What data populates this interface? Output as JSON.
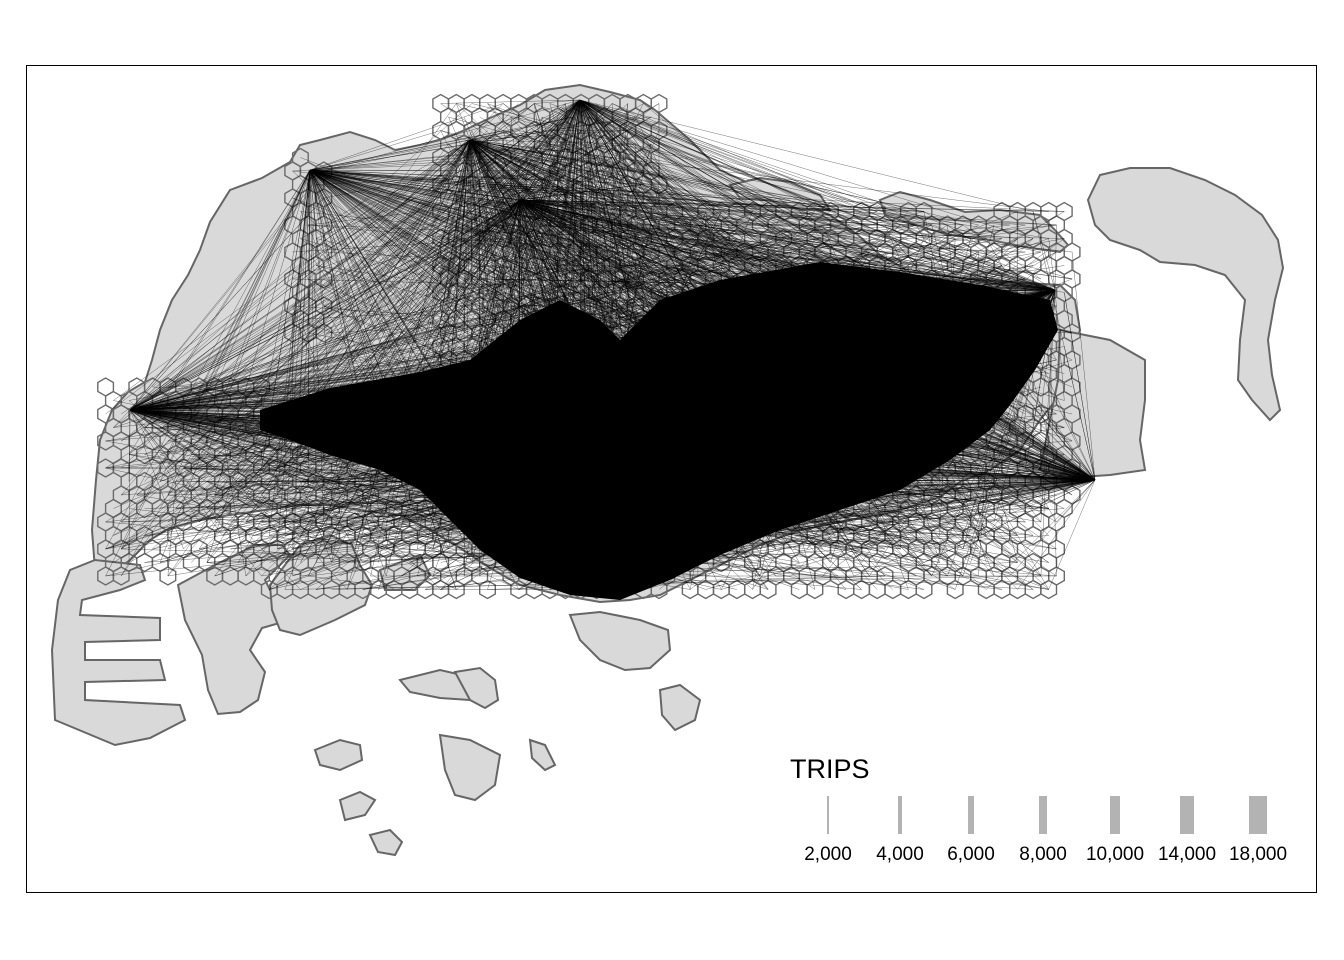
{
  "map": {
    "fill_color": "#d9d9d9",
    "border_color": "#666666",
    "flow_color": "#000000"
  },
  "legend": {
    "title": "TRIPS",
    "bar_color": "#b3b3b3",
    "items": [
      {
        "label": "2,000",
        "value": 2000
      },
      {
        "label": "4,000",
        "value": 4000
      },
      {
        "label": "6,000",
        "value": 6000
      },
      {
        "label": "8,000",
        "value": 8000
      },
      {
        "label": "10,000",
        "value": 10000
      },
      {
        "label": "14,000",
        "value": 14000
      },
      {
        "label": "18,000",
        "value": 18000
      }
    ]
  }
}
